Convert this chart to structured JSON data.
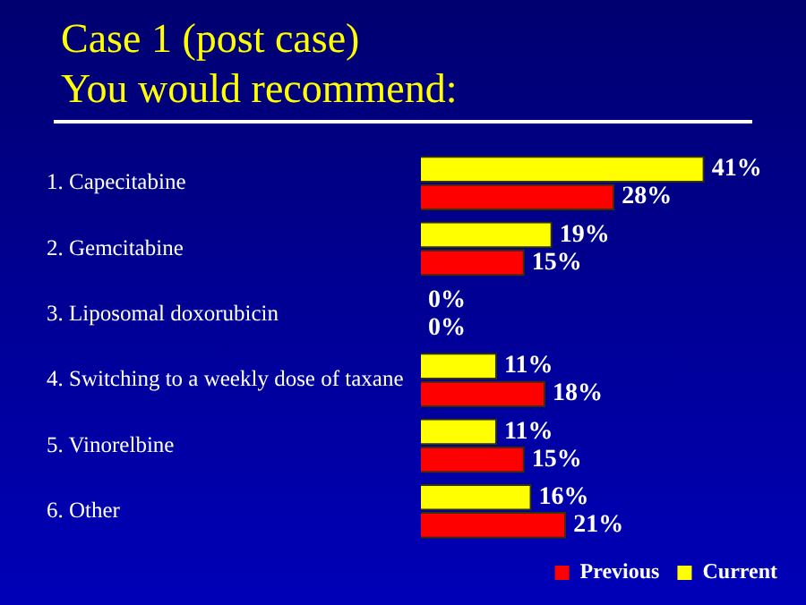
{
  "chart_data": {
    "type": "bar",
    "orientation": "horizontal",
    "title": "Case 1 (post case)",
    "subtitle": "You would recommend:",
    "categories": [
      "1. Capecitabine",
      "2. Gemcitabine",
      "3. Liposomal doxorubicin",
      "4. Switching to a weekly dose of taxane",
      "5. Vinorelbine",
      "6. Other"
    ],
    "series": [
      {
        "name": "Current",
        "color": "#ffff00",
        "values": [
          41,
          19,
          0,
          11,
          11,
          16
        ],
        "value_labels": [
          "41%",
          "19%",
          "0%",
          "11%",
          "11%",
          "16%"
        ]
      },
      {
        "name": "Previous",
        "color": "#ff0000",
        "values": [
          28,
          15,
          0,
          18,
          15,
          21
        ],
        "value_labels": [
          "28%",
          "15%",
          "0%",
          "18%",
          "15%",
          "21%"
        ]
      }
    ],
    "legend": "bottom right",
    "grid": false,
    "tick_labels": "y"
  }
}
